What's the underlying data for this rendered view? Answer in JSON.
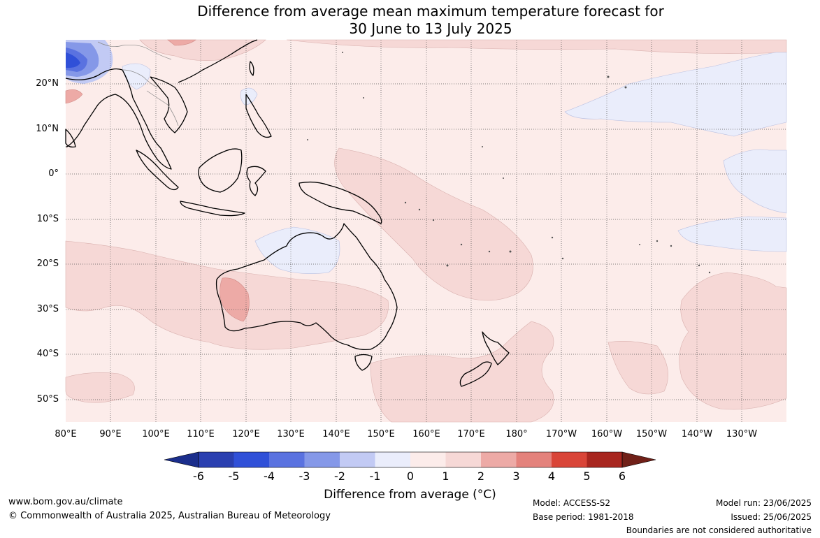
{
  "title": {
    "line1": "Difference from average mean maximum temperature forecast for",
    "line2": "30 June to 13 July 2025"
  },
  "map": {
    "lat_labels": [
      "20°N",
      "10°N",
      "0°",
      "10°S",
      "20°S",
      "30°S",
      "40°S",
      "50°S"
    ],
    "lon_labels": [
      "80°E",
      "90°E",
      "100°E",
      "110°E",
      "120°E",
      "130°E",
      "140°E",
      "150°E",
      "160°E",
      "170°E",
      "180°",
      "170°W",
      "160°W",
      "150°W",
      "140°W",
      "130°W"
    ],
    "dominant_anomaly": "0 to 1",
    "features": [
      "Strong cold anomaly over northern India / Bay of Bengal",
      "Weak cool anomalies over NW Australia, Pacific 0–25°N east of 160°W",
      "Weak warm anomalies over W Australia, Tasman Sea, South Pacific"
    ]
  },
  "colorbar": {
    "ticks": [
      "-6",
      "-5",
      "-4",
      "-3",
      "-2",
      "-1",
      "0",
      "1",
      "2",
      "3",
      "4",
      "5",
      "6"
    ],
    "colors": [
      "#1b2e8c",
      "#2a3fb0",
      "#3050d8",
      "#5a72e0",
      "#8598e8",
      "#c2caf4",
      "#eaedfb",
      "#fcecea",
      "#f6d8d6",
      "#edaaa6",
      "#e4827c",
      "#d94538",
      "#a8261f",
      "#702018"
    ],
    "label": "Difference from average (°C)"
  },
  "footer": {
    "website": "www.bom.gov.au/climate",
    "copyright": "© Commonwealth of Australia 2025, Australian Bureau of Meteorology",
    "model": "Model: ACCESS-S2",
    "base_period": "Base period: 1981-2018",
    "model_run": "Model run: 23/06/2025",
    "issued": "Issued: 25/06/2025",
    "disclaimer": "Boundaries are not considered authoritative"
  }
}
